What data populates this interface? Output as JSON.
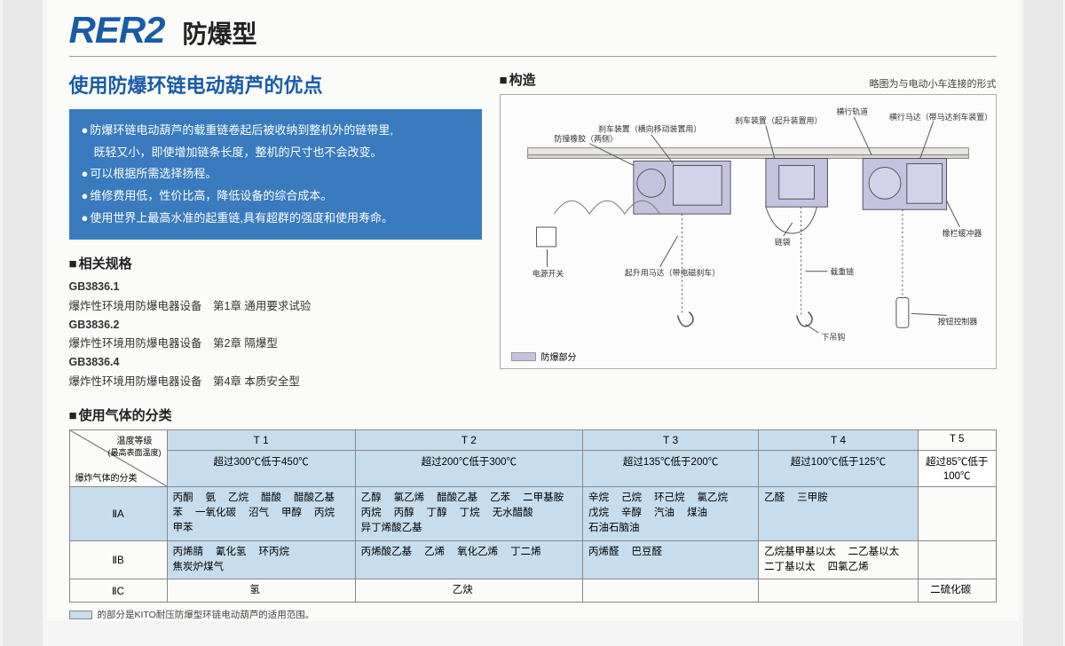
{
  "header": {
    "model": "RER2",
    "type": "防爆型"
  },
  "advantages": {
    "heading": "使用防爆环链电动葫芦的优点",
    "items": [
      "防爆环链电动葫芦的载重链卷起后被收纳到整机外的链带里,",
      "既轻又小，即使增加链条长度，整机的尺寸也不会改变。",
      "可以根据所需选择扬程。",
      "维修费用低，性价比高，降低设备的综合成本。",
      "使用世界上最高水准的起重链,具有超群的强度和使用寿命。"
    ]
  },
  "specs": {
    "heading": "相关规格",
    "rows": [
      {
        "code": "GB3836.1",
        "desc": "爆炸性环境用防爆电器设备　第1章 通用要求试验"
      },
      {
        "code": "GB3836.2",
        "desc": "爆炸性环境用防爆电器设备　第2章 隔爆型"
      },
      {
        "code": "GB3836.4",
        "desc": "爆炸性环境用防爆电器设备　第4章 本质安全型"
      }
    ]
  },
  "structure": {
    "heading": "构造",
    "caption": "略图为与电动小车连接的形式",
    "labels": {
      "l1": "刹车装置（横向移动装置用）",
      "l2": "防撞橡胶（两侧）",
      "l3": "起升用马达（带电磁刹车）",
      "l4": "电源开关",
      "l5": "刹车装置（起升装置用）",
      "l6": "链袋",
      "l7": "载重链",
      "l8": "下吊钩",
      "l9": "横行轨道",
      "l10": "横行马达（带马达刹车装置）",
      "l11": "橡栏缓冲器",
      "l12": "按钮控制器"
    },
    "legend": "防爆部分",
    "legend_color": "#c5c2e0"
  },
  "gas": {
    "heading": "使用气体的分类",
    "diag_top": "温度等级",
    "diag_top2": "(最高表面温度)",
    "diag_left": "爆炸气体的分类",
    "cols": [
      "T 1",
      "T 2",
      "T 3",
      "T 4",
      "T 5"
    ],
    "ranges": [
      "超过300℃低于450℃",
      "超过200℃低于300℃",
      "超过135℃低于200℃",
      "超过100℃低于125℃",
      "超过85℃低于100℃"
    ],
    "rows": [
      {
        "cat": "ⅡA",
        "highlight": true,
        "cells": [
          [
            "丙酮",
            "氨",
            "乙烷",
            "醋酸",
            "醋酸乙基",
            "苯",
            "一氧化碳",
            "沼气",
            "甲醇",
            "丙烷",
            "甲苯"
          ],
          [
            "乙醇",
            "氯乙烯",
            "醋酸乙基",
            "乙苯",
            "二甲基胺",
            "丙烷",
            "丙醇",
            "丁醇",
            "丁烷",
            "无水醋酸",
            "异丁烯酸乙基"
          ],
          [
            "辛烷",
            "己烷",
            "环己烷",
            "氯乙烷",
            "戊烷",
            "辛醇",
            "汽油",
            "煤油",
            "石油石脑油"
          ],
          [
            "乙醛",
            "三甲胺"
          ],
          []
        ]
      },
      {
        "cat": "ⅡB",
        "highlight": false,
        "cells": [
          [
            "丙烯腈",
            "氰化氢",
            "环丙烷",
            "焦炭炉煤气"
          ],
          [
            "丙烯酸乙基",
            "乙烯",
            "氧化乙烯",
            "丁二烯"
          ],
          [
            "丙烯醛",
            "巴豆醛"
          ],
          [
            "乙烷基甲基以太",
            "二乙基以太",
            "二丁基以太",
            "四氯乙烯"
          ],
          []
        ]
      },
      {
        "cat": "ⅡC",
        "highlight": false,
        "cells": [
          [
            "氢"
          ],
          [
            "乙炔"
          ],
          [],
          [],
          [
            "二硫化碳"
          ]
        ]
      }
    ]
  },
  "footnote": "的部分是KITO耐压防爆型环链电动葫芦的适用范围。",
  "colors": {
    "brand_blue": "#1a5ba8",
    "box_blue": "#3a7bbf",
    "table_tint": "#c7ddee",
    "legend_purple": "#c5c2e0"
  }
}
